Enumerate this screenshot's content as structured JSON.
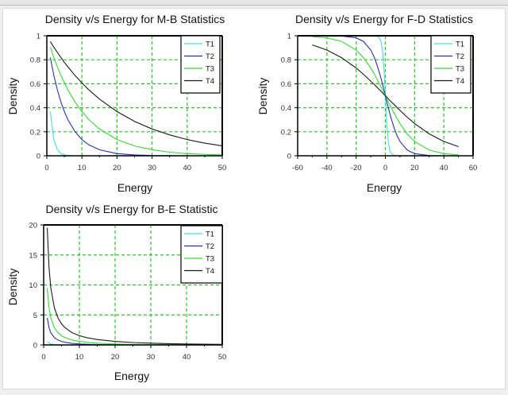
{
  "chart_data": [
    {
      "type": "line",
      "title": "Density v/s Energy for M-B Statistics",
      "xlabel": "Energy",
      "ylabel": "Density",
      "xlim": [
        0,
        50
      ],
      "ylim": [
        0,
        1
      ],
      "xticks": [
        "0",
        "10",
        "20",
        "30",
        "40",
        "50"
      ],
      "yticks": [
        "0",
        "0.2",
        "0.4",
        "0.6",
        "0.8",
        "1"
      ],
      "grid": true,
      "legend": "top-right",
      "x": [
        1,
        2,
        3,
        4,
        5,
        6,
        8,
        10,
        12,
        15,
        20,
        25,
        30,
        35,
        40,
        45,
        50
      ],
      "series": [
        {
          "name": "T1",
          "color": "#40e0e0",
          "values": [
            0.368,
            0.135,
            0.05,
            0.018,
            0.007,
            0.002,
            0.0,
            0,
            0,
            0,
            0,
            0,
            0,
            0,
            0,
            0,
            0
          ]
        },
        {
          "name": "T2",
          "color": "#2c2cc8",
          "values": [
            0.819,
            0.67,
            0.549,
            0.449,
            0.368,
            0.301,
            0.202,
            0.135,
            0.091,
            0.05,
            0.018,
            0.007,
            0.002,
            0.001,
            0,
            0,
            0
          ]
        },
        {
          "name": "T3",
          "color": "#2ee02e",
          "values": [
            0.905,
            0.819,
            0.741,
            0.67,
            0.607,
            0.549,
            0.449,
            0.368,
            0.301,
            0.223,
            0.135,
            0.082,
            0.05,
            0.03,
            0.018,
            0.011,
            0.007
          ]
        },
        {
          "name": "T4",
          "color": "#1a1a1a",
          "values": [
            0.951,
            0.905,
            0.861,
            0.819,
            0.779,
            0.741,
            0.67,
            0.607,
            0.549,
            0.472,
            0.368,
            0.287,
            0.223,
            0.174,
            0.135,
            0.105,
            0.082
          ]
        }
      ]
    },
    {
      "type": "line",
      "title": "Density v/s Energy for F-D Statistics",
      "xlabel": "Energy",
      "ylabel": "Density",
      "xlim": [
        -60,
        60
      ],
      "ylim": [
        0,
        1
      ],
      "xticks": [
        "-60",
        "-40",
        "-20",
        "0",
        "20",
        "40",
        "60"
      ],
      "yticks": [
        "0",
        "0.2",
        "0.4",
        "0.6",
        "0.8",
        "1"
      ],
      "grid": true,
      "legend": "top-right",
      "x": [
        -50,
        -40,
        -30,
        -20,
        -15,
        -10,
        -8,
        -6,
        -4,
        -3,
        -2,
        -1,
        0,
        1,
        2,
        3,
        4,
        6,
        8,
        10,
        15,
        20,
        30,
        40,
        50
      ],
      "series": [
        {
          "name": "T1",
          "color": "#40e0e0",
          "values": [
            1,
            1,
            1,
            1,
            1,
            1,
            1,
            0.998,
            0.982,
            0.953,
            0.881,
            0.731,
            0.5,
            0.269,
            0.119,
            0.047,
            0.018,
            0.002,
            0,
            0,
            0,
            0,
            0,
            0,
            0
          ]
        },
        {
          "name": "T2",
          "color": "#2c2cc8",
          "values": [
            1,
            1,
            0.998,
            0.982,
            0.953,
            0.881,
            0.832,
            0.769,
            0.69,
            0.646,
            0.599,
            0.55,
            0.5,
            0.45,
            0.401,
            0.354,
            0.31,
            0.231,
            0.168,
            0.119,
            0.047,
            0.018,
            0.002,
            0,
            0
          ]
        },
        {
          "name": "T3",
          "color": "#2ee02e",
          "values": [
            0.993,
            0.982,
            0.953,
            0.881,
            0.818,
            0.731,
            0.69,
            0.646,
            0.599,
            0.574,
            0.55,
            0.525,
            0.5,
            0.475,
            0.45,
            0.426,
            0.401,
            0.354,
            0.31,
            0.269,
            0.182,
            0.119,
            0.047,
            0.018,
            0.007
          ]
        },
        {
          "name": "T4",
          "color": "#1a1a1a",
          "values": [
            0.924,
            0.881,
            0.818,
            0.731,
            0.679,
            0.622,
            0.599,
            0.574,
            0.55,
            0.537,
            0.525,
            0.512,
            0.5,
            0.488,
            0.475,
            0.463,
            0.45,
            0.426,
            0.401,
            0.378,
            0.321,
            0.269,
            0.182,
            0.119,
            0.076
          ]
        }
      ]
    },
    {
      "type": "line",
      "title": "Density v/s Energy for B-E Statistic",
      "xlabel": "Energy",
      "ylabel": "Density",
      "xlim": [
        0,
        50
      ],
      "ylim": [
        0,
        20
      ],
      "xticks": [
        "0",
        "10",
        "20",
        "30",
        "40",
        "50"
      ],
      "yticks": [
        "0",
        "5",
        "10",
        "15",
        "20"
      ],
      "grid": true,
      "legend": "top-right",
      "x": [
        1,
        1.5,
        2,
        3,
        4,
        5,
        6,
        8,
        10,
        12,
        15,
        20,
        25,
        30,
        35,
        40,
        45,
        50
      ],
      "series": [
        {
          "name": "T1",
          "color": "#40e0e0",
          "values": [
            0.582,
            0.287,
            0.157,
            0.052,
            0.019,
            0.007,
            0.002,
            0,
            0,
            0,
            0,
            0,
            0,
            0,
            0,
            0,
            0,
            0
          ]
        },
        {
          "name": "T2",
          "color": "#2c2cc8",
          "values": [
            4.517,
            2.858,
            2.033,
            1.216,
            0.816,
            0.582,
            0.431,
            0.253,
            0.157,
            0.1,
            0.052,
            0.019,
            0.007,
            0.002,
            0.001,
            0,
            0,
            0
          ]
        },
        {
          "name": "T3",
          "color": "#2ee02e",
          "values": [
            9.508,
            6.179,
            4.517,
            2.858,
            2.033,
            1.541,
            1.216,
            0.816,
            0.582,
            0.431,
            0.287,
            0.157,
            0.089,
            0.052,
            0.031,
            0.019,
            0.011,
            0.007
          ]
        },
        {
          "name": "T4",
          "color": "#1a1a1a",
          "values": [
            19.504,
            12.84,
            9.508,
            6.179,
            4.517,
            3.521,
            2.858,
            2.033,
            1.541,
            1.216,
            0.895,
            0.582,
            0.402,
            0.287,
            0.21,
            0.157,
            0.118,
            0.089
          ]
        }
      ]
    }
  ],
  "colors": {
    "grid": "#22cc22",
    "axis": "#000000"
  }
}
